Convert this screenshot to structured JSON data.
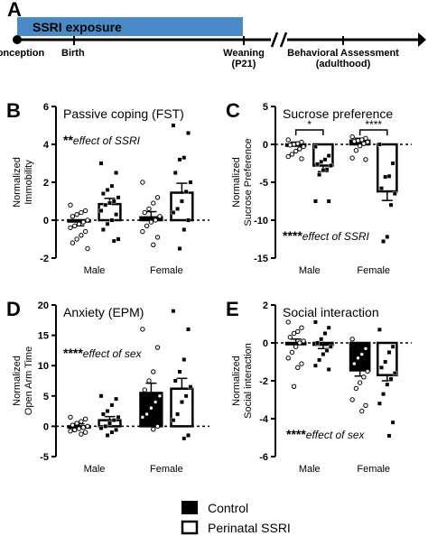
{
  "panel_a": {
    "label": "A",
    "bar_label": "SSRI exposure",
    "events": [
      "Conception",
      "Birth",
      "Weaning\n(P21)",
      "Behavioral Assessment\n(adulthood)"
    ],
    "bar_color": "#4a8bc7"
  },
  "legend": {
    "items": [
      {
        "label": "Control",
        "fill": "#000000"
      },
      {
        "label": "Perinatal SSRI",
        "fill": "#ffffff"
      }
    ]
  },
  "chart_data": [
    {
      "id": "B",
      "type": "bar",
      "label": "B",
      "title": "Passive coping (FST)",
      "ylabel": "Normalized\nImmobility",
      "ylim": [
        -2,
        6
      ],
      "yticks": [
        -2,
        0,
        2,
        4,
        6
      ],
      "categories": [
        "Male",
        "Female"
      ],
      "annotation": {
        "stars": "**",
        "text": "effect of SSRI"
      },
      "significance": [],
      "series": [
        {
          "name": "Control",
          "means": [
            -0.05,
            0.15
          ],
          "sem": [
            0.25,
            0.3
          ]
        },
        {
          "name": "Perinatal SSRI",
          "means": [
            0.85,
            1.45
          ],
          "sem": [
            0.3,
            0.5
          ]
        }
      ],
      "points": [
        [
          [
            0.8,
            0.5,
            0.4,
            0.3,
            0.2,
            0.0,
            -0.1,
            -0.2,
            -0.3,
            -0.4,
            -0.6,
            -0.8,
            -1.0,
            -1.2,
            -1.5
          ],
          [
            3.0,
            2.5,
            1.8,
            1.6,
            1.4,
            1.2,
            1.0,
            0.9,
            0.8,
            0.5,
            0.3,
            0.0,
            -0.2,
            -0.5,
            -1.0,
            -1.1
          ]
        ],
        [
          [
            2.0,
            1.2,
            0.9,
            0.6,
            0.4,
            0.2,
            0.0,
            -0.1,
            -0.3,
            -0.6,
            -0.9,
            -1.3
          ],
          [
            5.0,
            4.6,
            3.3,
            3.2,
            2.5,
            2.0,
            1.5,
            1.0,
            0.6,
            0.4,
            0.0,
            -0.5,
            -1.5
          ]
        ]
      ]
    },
    {
      "id": "C",
      "type": "bar",
      "label": "C",
      "title": "Sucrose preference",
      "ylabel": "Normalized\nSucrose Preference",
      "ylim": [
        -15,
        5
      ],
      "yticks": [
        -15,
        -10,
        -5,
        0,
        5
      ],
      "categories": [
        "Male",
        "Female"
      ],
      "annotation": {
        "stars": "****",
        "text": "effect of SSRI"
      },
      "significance": [
        {
          "category": 0,
          "stars": "*"
        },
        {
          "category": 1,
          "stars": "****"
        }
      ],
      "series": [
        {
          "name": "Control",
          "means": [
            0.0,
            0.5
          ],
          "sem": [
            0.3,
            0.3
          ]
        },
        {
          "name": "Perinatal SSRI",
          "means": [
            -2.8,
            -6.2
          ],
          "sem": [
            0.8,
            1.2
          ]
        }
      ],
      "points": [
        [
          [
            0.6,
            0.3,
            0.1,
            0.0,
            -0.1,
            -0.3,
            -0.6,
            -0.9,
            -1.3,
            -1.6,
            -1.9
          ],
          [
            -0.3,
            -1.5,
            -2.0,
            -2.3,
            -2.6,
            -2.8,
            -3.3,
            -3.4,
            -4.0,
            -7.5,
            -7.5
          ]
        ],
        [
          [
            1.0,
            0.8,
            0.6,
            0.5,
            0.4,
            0.3,
            0.1,
            -0.2,
            -0.8,
            -1.8,
            -2.0
          ],
          [
            0.0,
            -2.5,
            -4.2,
            -4.3,
            -5.8,
            -6.5,
            -8.0,
            -12.2,
            -12.8
          ]
        ]
      ]
    },
    {
      "id": "D",
      "type": "bar",
      "label": "D",
      "title": "Anxiety (EPM)",
      "ylabel": "Normalized\nOpen Arm Time",
      "ylim": [
        -5,
        20
      ],
      "yticks": [
        -5,
        0,
        5,
        10,
        15,
        20
      ],
      "categories": [
        "Male",
        "Female"
      ],
      "annotation": {
        "stars": "****",
        "text": "effect of sex"
      },
      "significance": [],
      "series": [
        {
          "name": "Control",
          "means": [
            0.0,
            5.5
          ],
          "sem": [
            0.4,
            1.6
          ]
        },
        {
          "name": "Perinatal SSRI",
          "means": [
            1.0,
            6.2
          ],
          "sem": [
            0.6,
            1.7
          ]
        }
      ],
      "points": [
        [
          [
            1.5,
            1.2,
            0.8,
            0.5,
            0.2,
            0.0,
            -0.2,
            -0.4,
            -0.6,
            -0.8,
            -1.0,
            -1.3
          ],
          [
            5.0,
            4.5,
            3.5,
            2.5,
            2.0,
            1.5,
            1.0,
            0.5,
            0.0,
            -0.3,
            -0.6,
            -1.0,
            -1.5
          ]
        ],
        [
          [
            16.0,
            13.0,
            9.0,
            7.5,
            6.0,
            5.0,
            4.0,
            3.0,
            2.0,
            1.5,
            0.0,
            -0.5
          ],
          [
            19.0,
            16.0,
            11.0,
            9.0,
            7.5,
            6.5,
            5.0,
            4.0,
            2.0,
            1.0,
            -1.5,
            -2.0
          ]
        ]
      ]
    },
    {
      "id": "E",
      "type": "bar",
      "label": "E",
      "title": "Social interaction",
      "ylabel": "Normalized\nSocial interaction",
      "ylim": [
        -6,
        2
      ],
      "yticks": [
        -6,
        -4,
        -2,
        0,
        2
      ],
      "categories": [
        "Male",
        "Female"
      ],
      "annotation": {
        "stars": "****",
        "text": "effect of sex"
      },
      "significance": [],
      "series": [
        {
          "name": "Control",
          "means": [
            0.0,
            -1.45
          ],
          "sem": [
            0.2,
            0.3
          ]
        },
        {
          "name": "Perinatal SSRI",
          "means": [
            -0.1,
            -1.7
          ],
          "sem": [
            0.2,
            0.3
          ]
        }
      ],
      "points": [
        [
          [
            1.1,
            0.8,
            0.6,
            0.5,
            0.3,
            0.1,
            0.0,
            -0.2,
            -0.5,
            -0.8,
            -1.1,
            -1.3,
            -2.3
          ],
          [
            1.1,
            0.8,
            0.5,
            0.2,
            0.0,
            -0.2,
            -0.4,
            -0.6,
            -0.9,
            -1.2,
            -1.4
          ]
        ],
        [
          [
            0.2,
            -0.3,
            -0.6,
            -0.8,
            -1.1,
            -1.5,
            -1.8,
            -2.1,
            -2.4,
            -3.0,
            -3.3,
            -3.6
          ],
          [
            0.7,
            -0.2,
            -0.5,
            -1.0,
            -1.3,
            -1.6,
            -1.9,
            -2.2,
            -2.7,
            -3.2,
            -4.2,
            -4.9
          ]
        ]
      ]
    }
  ]
}
